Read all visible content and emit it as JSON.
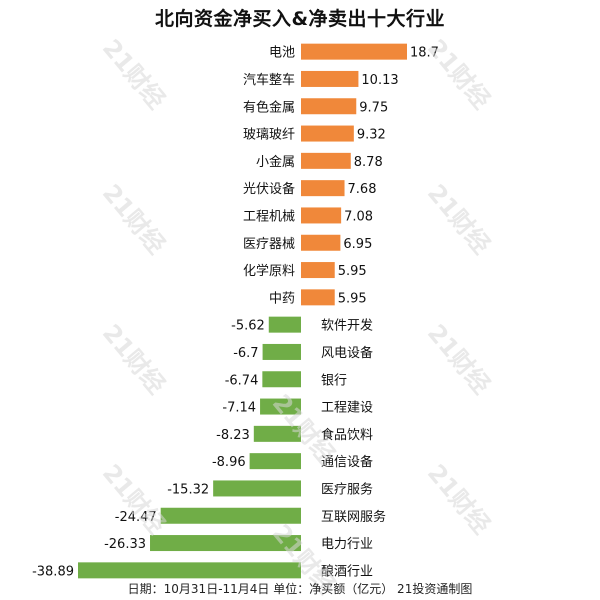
{
  "chart_data": {
    "type": "bar",
    "orientation": "horizontal",
    "title": "北向资金净买入&净卖出十大行业",
    "categories": [
      "电池",
      "汽车整车",
      "有色金属",
      "玻璃玻纤",
      "小金属",
      "光伏设备",
      "工程机械",
      "医疗器械",
      "化学原料",
      "中药",
      "软件开发",
      "风电设备",
      "银行",
      "工程建设",
      "食品饮料",
      "通信设备",
      "医疗服务",
      "互联网服务",
      "电力行业",
      "酿酒行业"
    ],
    "values": [
      18.7,
      10.13,
      9.75,
      9.32,
      8.78,
      7.68,
      7.08,
      6.95,
      5.95,
      5.95,
      -5.62,
      -6.7,
      -6.74,
      -7.14,
      -8.23,
      -8.96,
      -15.32,
      -24.47,
      -26.33,
      -38.89
    ],
    "value_labels": [
      "18.7",
      "10.13",
      "9.75",
      "9.32",
      "8.78",
      "7.68",
      "7.08",
      "6.95",
      "5.95",
      "5.95",
      "-5.62",
      "-6.7",
      "-6.74",
      "-7.14",
      "-8.23",
      "-8.96",
      "-15.32",
      "-24.47",
      "-26.33",
      "-38.89"
    ],
    "colors": {
      "positive": "#F0883A",
      "negative": "#70AD47"
    },
    "xlim": [
      -38.89,
      18.7
    ]
  },
  "footer": "日期：10月31日-11月4日 单位：净买额（亿元） 21投资通制图",
  "watermark": "21财经"
}
